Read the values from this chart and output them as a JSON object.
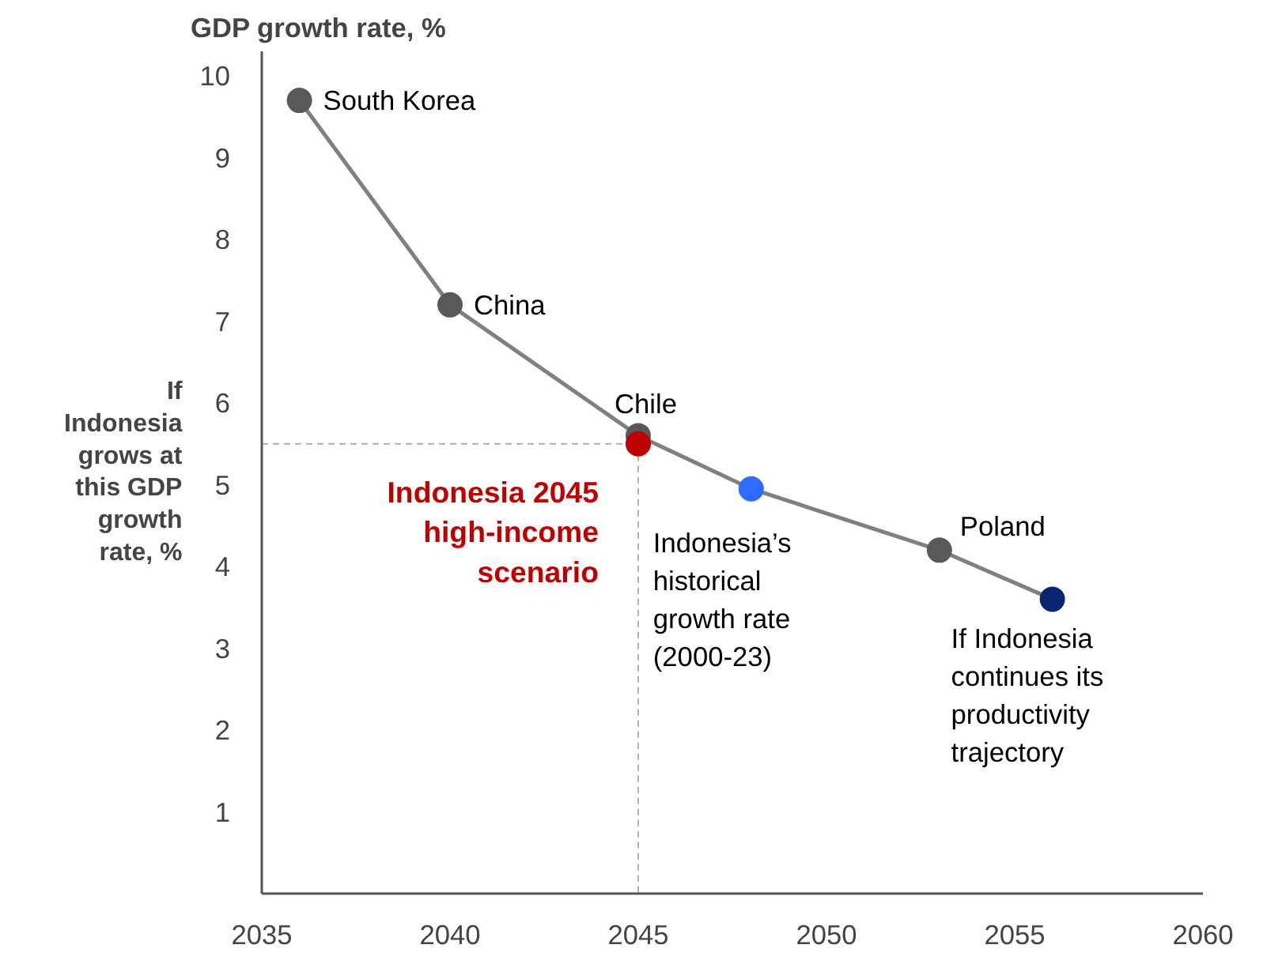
{
  "chart_data": {
    "type": "line",
    "title": "GDP growth rate, %",
    "ylabel": "If Indonesia grows at this GDP growth rate, %",
    "xlim": [
      2035,
      2060
    ],
    "xticks": [
      2035,
      2040,
      2045,
      2050,
      2055,
      2060
    ],
    "ylim": [
      0,
      10.3
    ],
    "yticks": [
      1,
      2,
      3,
      4,
      5,
      6,
      7,
      8,
      9,
      10
    ],
    "grid": false,
    "series": [
      {
        "color": "#808080",
        "x": [
          2036,
          2040,
          2045,
          2048,
          2053,
          2056
        ],
        "values": [
          9.7,
          7.2,
          5.6,
          4.95,
          4.2,
          3.6
        ],
        "marker": "none"
      },
      {
        "type": "line",
        "color": "#b0b0b0",
        "x": [
          2035,
          2045,
          2045
        ],
        "values": [
          5.5,
          5.5,
          0
        ],
        "line_style": "dashed",
        "marker": "none"
      },
      {
        "type": "scatter",
        "color": "#595959",
        "x": [
          2036,
          2040,
          2045,
          2053
        ],
        "values": [
          9.7,
          7.2,
          5.6,
          4.2
        ],
        "marker": "circle"
      },
      {
        "type": "scatter",
        "name": "Indonesia 2045 high-income scenario",
        "color": "#c00000",
        "x": [
          2045
        ],
        "values": [
          5.5
        ],
        "marker": "circle"
      },
      {
        "type": "scatter",
        "color": "#2f6bff",
        "x": [
          2048
        ],
        "values": [
          4.95
        ],
        "marker": "circle"
      },
      {
        "type": "scatter",
        "color": "#0b2470",
        "x": [
          2056
        ],
        "values": [
          3.6
        ],
        "marker": "circle"
      }
    ],
    "annotations": [
      {
        "text": "South Korea",
        "x": 2036,
        "y": 9.7
      },
      {
        "text": "China",
        "x": 2040,
        "y": 7.2
      },
      {
        "text": "Chile",
        "x": 2045,
        "y": 5.6
      },
      {
        "text": "Indonesia’s historical growth rate (2000-23)",
        "x": 2048,
        "y": 4.95
      },
      {
        "text": "Poland",
        "x": 2053,
        "y": 4.2
      },
      {
        "text": "If Indonesia continues its productivity trajectory",
        "x": 2056,
        "y": 3.6
      }
    ]
  }
}
